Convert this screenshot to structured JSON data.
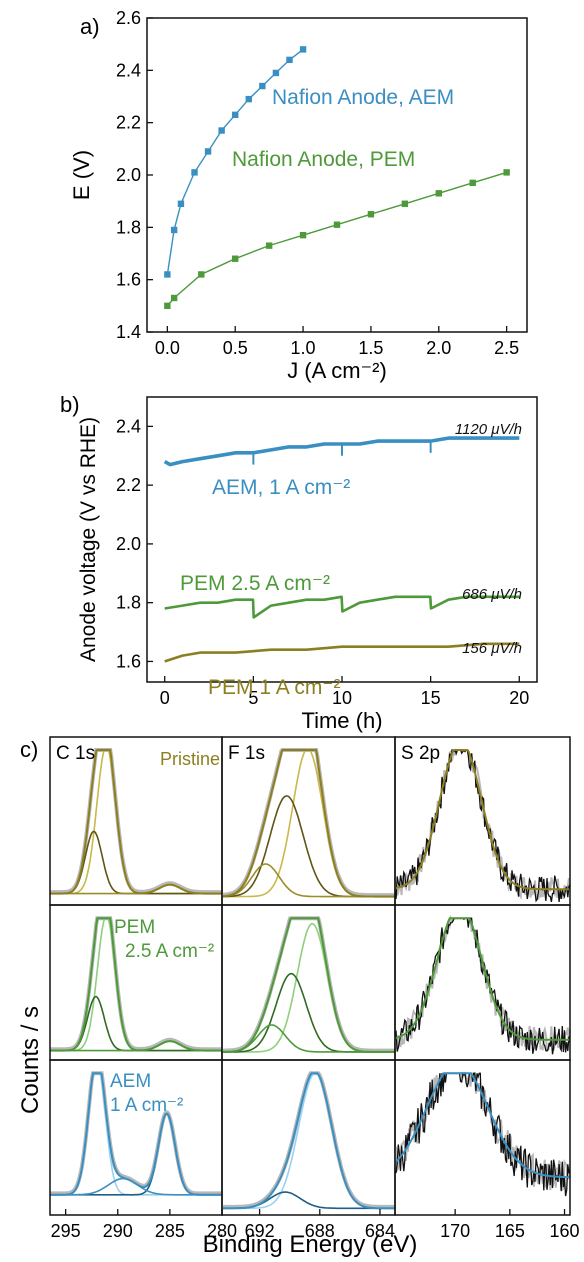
{
  "colors": {
    "blue": "#3a8fc2",
    "green": "#4e9a3a",
    "olive": "#8c7f1f",
    "gray": "#b8b8b8",
    "black": "#111111"
  },
  "panel_a": {
    "label": "a)",
    "ann_aem": "Nafion Anode, AEM",
    "ann_pem": "Nafion Anode, PEM"
  },
  "panel_b": {
    "label": "b)",
    "ann_aem": "AEM, 1 A cm⁻²",
    "ann_pem25": "PEM 2.5 A cm⁻²",
    "ann_pem1": "PEM 1 A cm⁻²",
    "rate_aem": "1120 μV/h",
    "rate_pem25": "686 μV/h",
    "rate_pem1": "156 μV/h"
  },
  "panel_c": {
    "label": "c)",
    "ylabel": "Counts / s",
    "xlabel": "Binding Energy (eV)",
    "col_titles": [
      "C 1s",
      "F 1s",
      "S 2p"
    ],
    "row_labels": [
      [
        "Pristine"
      ],
      [
        "PEM",
        "2.5 A cm⁻²"
      ],
      [
        "AEM",
        "1 A cm⁻²"
      ]
    ],
    "xticks": [
      [
        "295",
        "290",
        "285",
        "280"
      ],
      [
        "692",
        "688",
        "684"
      ],
      [
        "170",
        "165",
        "160"
      ]
    ]
  },
  "chart_data": [
    {
      "type": "line",
      "panel": "a",
      "xlabel": "J (A cm⁻²)",
      "ylabel": "E (V)",
      "xlim": [
        -0.15,
        2.65
      ],
      "ylim": [
        1.4,
        2.6
      ],
      "xticks": [
        "0.0",
        "0.5",
        "1.0",
        "1.5",
        "2.0",
        "2.5"
      ],
      "yticks": [
        "1.4",
        "1.6",
        "1.8",
        "2.0",
        "2.2",
        "2.4",
        "2.6"
      ],
      "series": [
        {
          "name": "Nafion Anode, AEM",
          "color": "#3a8fc2",
          "x": [
            0.0,
            0.05,
            0.1,
            0.2,
            0.3,
            0.4,
            0.5,
            0.6,
            0.7,
            0.8,
            0.9,
            1.0
          ],
          "y": [
            1.62,
            1.79,
            1.89,
            2.01,
            2.09,
            2.17,
            2.23,
            2.29,
            2.34,
            2.39,
            2.44,
            2.48
          ]
        },
        {
          "name": "Nafion Anode, PEM",
          "color": "#4e9a3a",
          "x": [
            0.0,
            0.05,
            0.25,
            0.5,
            0.75,
            1.0,
            1.25,
            1.5,
            1.75,
            2.0,
            2.25,
            2.5
          ],
          "y": [
            1.5,
            1.53,
            1.62,
            1.68,
            1.73,
            1.77,
            1.81,
            1.85,
            1.89,
            1.93,
            1.97,
            2.01
          ]
        }
      ]
    },
    {
      "type": "line",
      "panel": "b",
      "xlabel": "Time (h)",
      "ylabel": "Anode voltage (V vs RHE)",
      "xlim": [
        -1,
        21
      ],
      "ylim": [
        1.53,
        2.5
      ],
      "xticks": [
        "0",
        "5",
        "10",
        "15",
        "20"
      ],
      "yticks": [
        "1.6",
        "1.8",
        "2.0",
        "2.2",
        "2.4"
      ],
      "series": [
        {
          "name": "AEM, 1 A cm⁻²",
          "color": "#3a8fc2",
          "x": [
            0,
            0.3,
            1,
            2,
            3,
            4,
            5,
            6,
            7,
            8,
            9,
            10,
            11,
            12,
            13,
            14,
            15,
            16,
            17,
            18,
            19,
            20
          ],
          "y": [
            2.28,
            2.27,
            2.28,
            2.29,
            2.3,
            2.31,
            2.31,
            2.32,
            2.33,
            2.33,
            2.34,
            2.34,
            2.34,
            2.35,
            2.35,
            2.35,
            2.35,
            2.36,
            2.36,
            2.36,
            2.36,
            2.36
          ]
        },
        {
          "name": "PEM 2.5 A cm⁻²",
          "color": "#4e9a3a",
          "x": [
            0,
            1,
            2,
            3,
            4,
            4.98,
            5.02,
            6,
            7,
            8,
            9,
            9.98,
            10.02,
            11,
            12,
            13,
            14,
            14.98,
            15.02,
            16,
            17,
            18,
            19,
            20
          ],
          "y": [
            1.78,
            1.79,
            1.8,
            1.8,
            1.81,
            1.81,
            1.75,
            1.79,
            1.8,
            1.81,
            1.81,
            1.82,
            1.77,
            1.8,
            1.81,
            1.82,
            1.82,
            1.82,
            1.78,
            1.81,
            1.82,
            1.82,
            1.82,
            1.82
          ]
        },
        {
          "name": "PEM 1 A cm⁻²",
          "color": "#8c7f1f",
          "x": [
            0,
            0.5,
            1,
            2,
            4,
            6,
            8,
            10,
            12,
            14,
            16,
            18,
            20
          ],
          "y": [
            1.6,
            1.61,
            1.62,
            1.63,
            1.63,
            1.64,
            1.64,
            1.65,
            1.65,
            1.65,
            1.65,
            1.66,
            1.66
          ]
        }
      ]
    },
    {
      "type": "line",
      "panel": "c",
      "x_axes": [
        [
          296.5,
          280
        ],
        [
          694.5,
          683
        ],
        [
          175.5,
          159.5
        ]
      ],
      "rows": [
        "Pristine",
        "PEM 2.5 A cm⁻²",
        "AEM 1 A cm⁻²"
      ],
      "cells": [
        [
          {
            "peaks": [
              [
                291.1,
                0.9,
                1.0
              ],
              [
                292.3,
                0.8,
                0.42
              ],
              [
                285.0,
                1.0,
                0.06
              ]
            ],
            "base": 0.05
          },
          {
            "peaks": [
              [
                688.8,
                1.0,
                1.0
              ],
              [
                690.2,
                1.1,
                0.68
              ],
              [
                691.6,
                0.9,
                0.22
              ]
            ],
            "base": 0.03
          },
          {
            "peaks": [
              [
                169.5,
                1.9,
                1.0
              ]
            ],
            "base": 0.08,
            "noise": 0.08
          }
        ],
        [
          {
            "peaks": [
              [
                291.1,
                0.85,
                1.0
              ],
              [
                292.1,
                0.8,
                0.4
              ],
              [
                285.0,
                1.0,
                0.07
              ]
            ],
            "base": 0.04
          },
          {
            "peaks": [
              [
                688.5,
                1.0,
                0.95
              ],
              [
                689.9,
                1.0,
                0.58
              ],
              [
                691.2,
                0.9,
                0.2
              ]
            ],
            "base": 0.03
          },
          {
            "peaks": [
              [
                169.6,
                2.0,
                1.0
              ]
            ],
            "base": 0.12,
            "noise": 0.09
          }
        ],
        [
          {
            "peaks": [
              [
                292.0,
                0.8,
                1.0
              ],
              [
                285.3,
                0.8,
                0.6
              ],
              [
                289.5,
                1.4,
                0.12
              ]
            ],
            "base": 0.12
          },
          {
            "peaks": [
              [
                688.3,
                1.1,
                1.0
              ],
              [
                690.3,
                1.0,
                0.12
              ]
            ],
            "base": 0.02
          },
          {
            "peaks": [
              [
                169.8,
                2.8,
                0.85
              ]
            ],
            "base": 0.25,
            "noise": 0.12
          }
        ]
      ]
    }
  ]
}
